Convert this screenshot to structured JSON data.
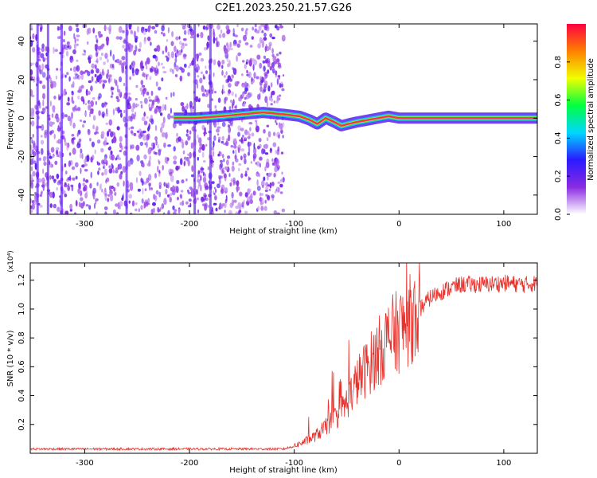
{
  "title": "C2E1.2023.250.21.57.G26",
  "colors": {
    "line": "#e8322c",
    "ridge": "#ff2d5a",
    "axis": "#000000"
  },
  "chart_data": [
    {
      "type": "heatmap",
      "xlabel": "Height of straight line (km)",
      "ylabel": "Frequency (Hz)",
      "xlim": [
        -352,
        132
      ],
      "ylim": [
        -50,
        49
      ],
      "xticks": [
        -300,
        -200,
        -100,
        0,
        100
      ],
      "xtick_labels": [
        "-300",
        "-200",
        "-100",
        "0",
        "100"
      ],
      "yticks": [
        -40,
        -20,
        0,
        20,
        40
      ],
      "ytick_labels": [
        "-40",
        "-20",
        "0",
        "20",
        "40"
      ],
      "colorbar": {
        "label": "Normalized spectral amplitude",
        "range": [
          0,
          1
        ],
        "ticks": [
          "0.0",
          "0.2",
          "0.4",
          "0.6",
          "0.8"
        ],
        "tick_values": [
          0.0,
          0.2,
          0.4,
          0.6,
          0.8
        ],
        "colormap": [
          "#ffffff",
          "#8a2be2",
          "#2a1aff",
          "#00d7ff",
          "#00ff40",
          "#f0ff00",
          "#ff8000",
          "#ff0040"
        ]
      },
      "ridge": {
        "x": [
          -215,
          -195,
          -170,
          -150,
          -130,
          -110,
          -95,
          -85,
          -78,
          -70,
          -62,
          -55,
          -48,
          -40,
          -30,
          -20,
          -10,
          0,
          50,
          100,
          132
        ],
        "y": [
          0,
          0,
          1,
          2,
          3,
          2,
          1,
          -1,
          -3,
          0,
          -2,
          -4,
          -3,
          -2,
          -1,
          0,
          1,
          0,
          0,
          0,
          0
        ]
      },
      "noise_region_x": [
        -352,
        -110
      ]
    },
    {
      "type": "line",
      "xlabel": "Height of straight line (km)",
      "ylabel": "SNR (10 * v/v)",
      "scale_label": "(x10⁴)",
      "xlim": [
        -352,
        132
      ],
      "ylim": [
        0,
        1.32
      ],
      "xticks": [
        -300,
        -200,
        -100,
        0,
        100
      ],
      "xtick_labels": [
        "-300",
        "-200",
        "-100",
        "0",
        "100"
      ],
      "yticks": [
        0.2,
        0.4,
        0.6,
        0.8,
        1.0,
        1.2
      ],
      "ytick_labels": [
        "0.2",
        "0.4",
        "0.6",
        "0.8",
        "1.0",
        "1.2"
      ],
      "series": [
        {
          "name": "SNR",
          "x": [
            -352,
            -300,
            -250,
            -200,
            -150,
            -110,
            -100,
            -90,
            -80,
            -70,
            -60,
            -50,
            -40,
            -30,
            -20,
            -10,
            0,
            10,
            20,
            30,
            40,
            50,
            60,
            80,
            100,
            120,
            132
          ],
          "values": [
            0.03,
            0.03,
            0.03,
            0.03,
            0.03,
            0.03,
            0.05,
            0.08,
            0.12,
            0.18,
            0.25,
            0.35,
            0.5,
            0.6,
            0.7,
            0.8,
            0.85,
            0.92,
            1.0,
            1.08,
            1.12,
            1.15,
            1.17,
            1.17,
            1.18,
            1.17,
            1.18
          ]
        }
      ]
    }
  ]
}
